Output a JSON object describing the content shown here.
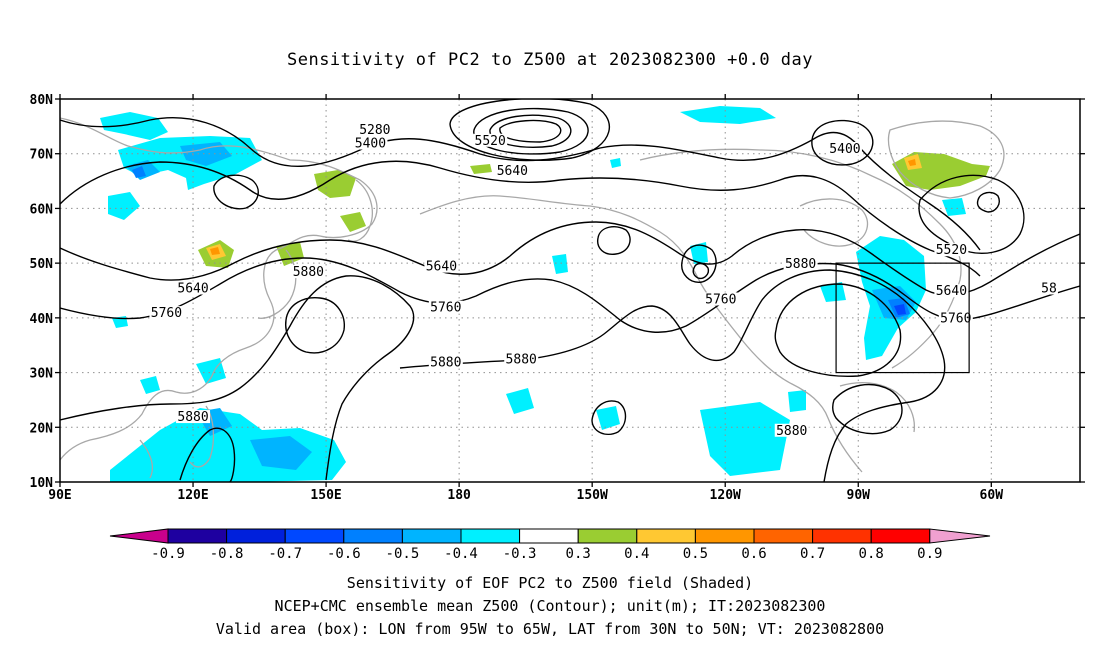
{
  "title": "Sensitivity of PC2 to Z500 at 2023082300 +0.0 day",
  "caption": {
    "line1": "Sensitivity of EOF PC2 to Z500 field (Shaded)",
    "line2": "NCEP+CMC ensemble mean Z500 (Contour); unit(m); IT:2023082300",
    "line3": "Valid area (box): LON from 95W to 65W, LAT from 30N to 50N; VT: 2023082800"
  },
  "axes": {
    "lat_labels": [
      "80N",
      "70N",
      "60N",
      "50N",
      "40N",
      "30N",
      "20N",
      "10N"
    ],
    "lon_labels": [
      "90E",
      "120E",
      "150E",
      "180",
      "150W",
      "120W",
      "90W",
      "60W"
    ]
  },
  "contour_labels": [
    {
      "text": "5280",
      "lon": 161,
      "lat": 74
    },
    {
      "text": "5400",
      "lon": 160,
      "lat": 71.5
    },
    {
      "text": "5520",
      "lon": 187,
      "lat": 72
    },
    {
      "text": "5640",
      "lon": 192,
      "lat": 66.5
    },
    {
      "text": "5400",
      "lon": 267,
      "lat": 70.5
    },
    {
      "text": "5520",
      "lon": 291,
      "lat": 52
    },
    {
      "text": "5640",
      "lon": 291,
      "lat": 44.5
    },
    {
      "text": "5760",
      "lon": 292,
      "lat": 39.5
    },
    {
      "text": "58",
      "lon": 313,
      "lat": 45
    },
    {
      "text": "5880",
      "lon": 257,
      "lat": 49.5
    },
    {
      "text": "5760",
      "lon": 239,
      "lat": 43
    },
    {
      "text": "5640",
      "lon": 176,
      "lat": 49
    },
    {
      "text": "5760",
      "lon": 177,
      "lat": 41.5
    },
    {
      "text": "5880",
      "lon": 146,
      "lat": 48
    },
    {
      "text": "5880",
      "lon": 177,
      "lat": 31.5
    },
    {
      "text": "5880",
      "lon": 194,
      "lat": 32
    },
    {
      "text": "5640",
      "lon": 120,
      "lat": 45
    },
    {
      "text": "5760",
      "lon": 114,
      "lat": 40.5
    },
    {
      "text": "5880",
      "lon": 120,
      "lat": 21.5
    },
    {
      "text": "5880",
      "lon": 255,
      "lat": 19
    }
  ],
  "valid_box": {
    "lon_min": -95,
    "lon_max": -65,
    "lat_min": 30,
    "lat_max": 50
  },
  "colorbar": {
    "labels": [
      "-0.9",
      "-0.8",
      "-0.7",
      "-0.6",
      "-0.5",
      "-0.4",
      "-0.3",
      "0.3",
      "0.4",
      "0.5",
      "0.6",
      "0.7",
      "0.8",
      "0.9"
    ],
    "colors": [
      "#1e00a0",
      "#0020dc",
      "#0048ff",
      "#0080ff",
      "#00b4ff",
      "#00f0ff",
      "#ffffff",
      "#9acd32",
      "#ffc832",
      "#ff9600",
      "#ff6400",
      "#ff3200",
      "#ff0000"
    ],
    "low_color": "#c8008c",
    "high_color": "#f0a0d0"
  },
  "colors": {
    "contour": "#000000",
    "coastline": "#a8a8a8",
    "grid": "#909090",
    "box": "#000000"
  }
}
